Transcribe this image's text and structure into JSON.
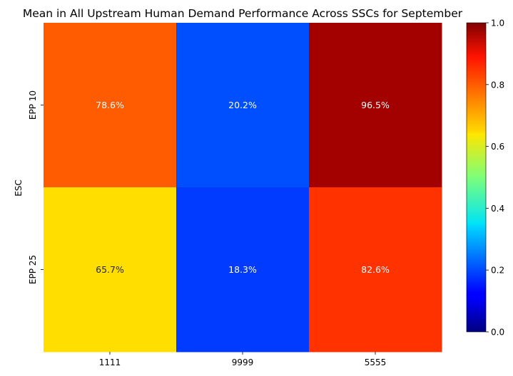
{
  "chart_data": {
    "type": "heatmap",
    "title": "Mean in All Upstream Human Demand Performance Across SSCs for September",
    "xlabel": "",
    "ylabel": "ESC",
    "x_categories": [
      "1111",
      "9999",
      "5555"
    ],
    "y_categories": [
      "EPP 10",
      "EPP 25"
    ],
    "values": [
      [
        0.786,
        0.202,
        0.965
      ],
      [
        0.657,
        0.183,
        0.826
      ]
    ],
    "cell_labels": [
      [
        "78.6%",
        "20.2%",
        "96.5%"
      ],
      [
        "65.7%",
        "18.3%",
        "82.6%"
      ]
    ],
    "colormap": "jet",
    "value_range": [
      0.0,
      1.0
    ],
    "colorbar": {
      "ticks": [
        0.0,
        0.2,
        0.4,
        0.6,
        0.8,
        1.0
      ],
      "tick_labels": [
        "0.0",
        "0.2",
        "0.4",
        "0.6",
        "0.8",
        "1.0"
      ]
    }
  }
}
